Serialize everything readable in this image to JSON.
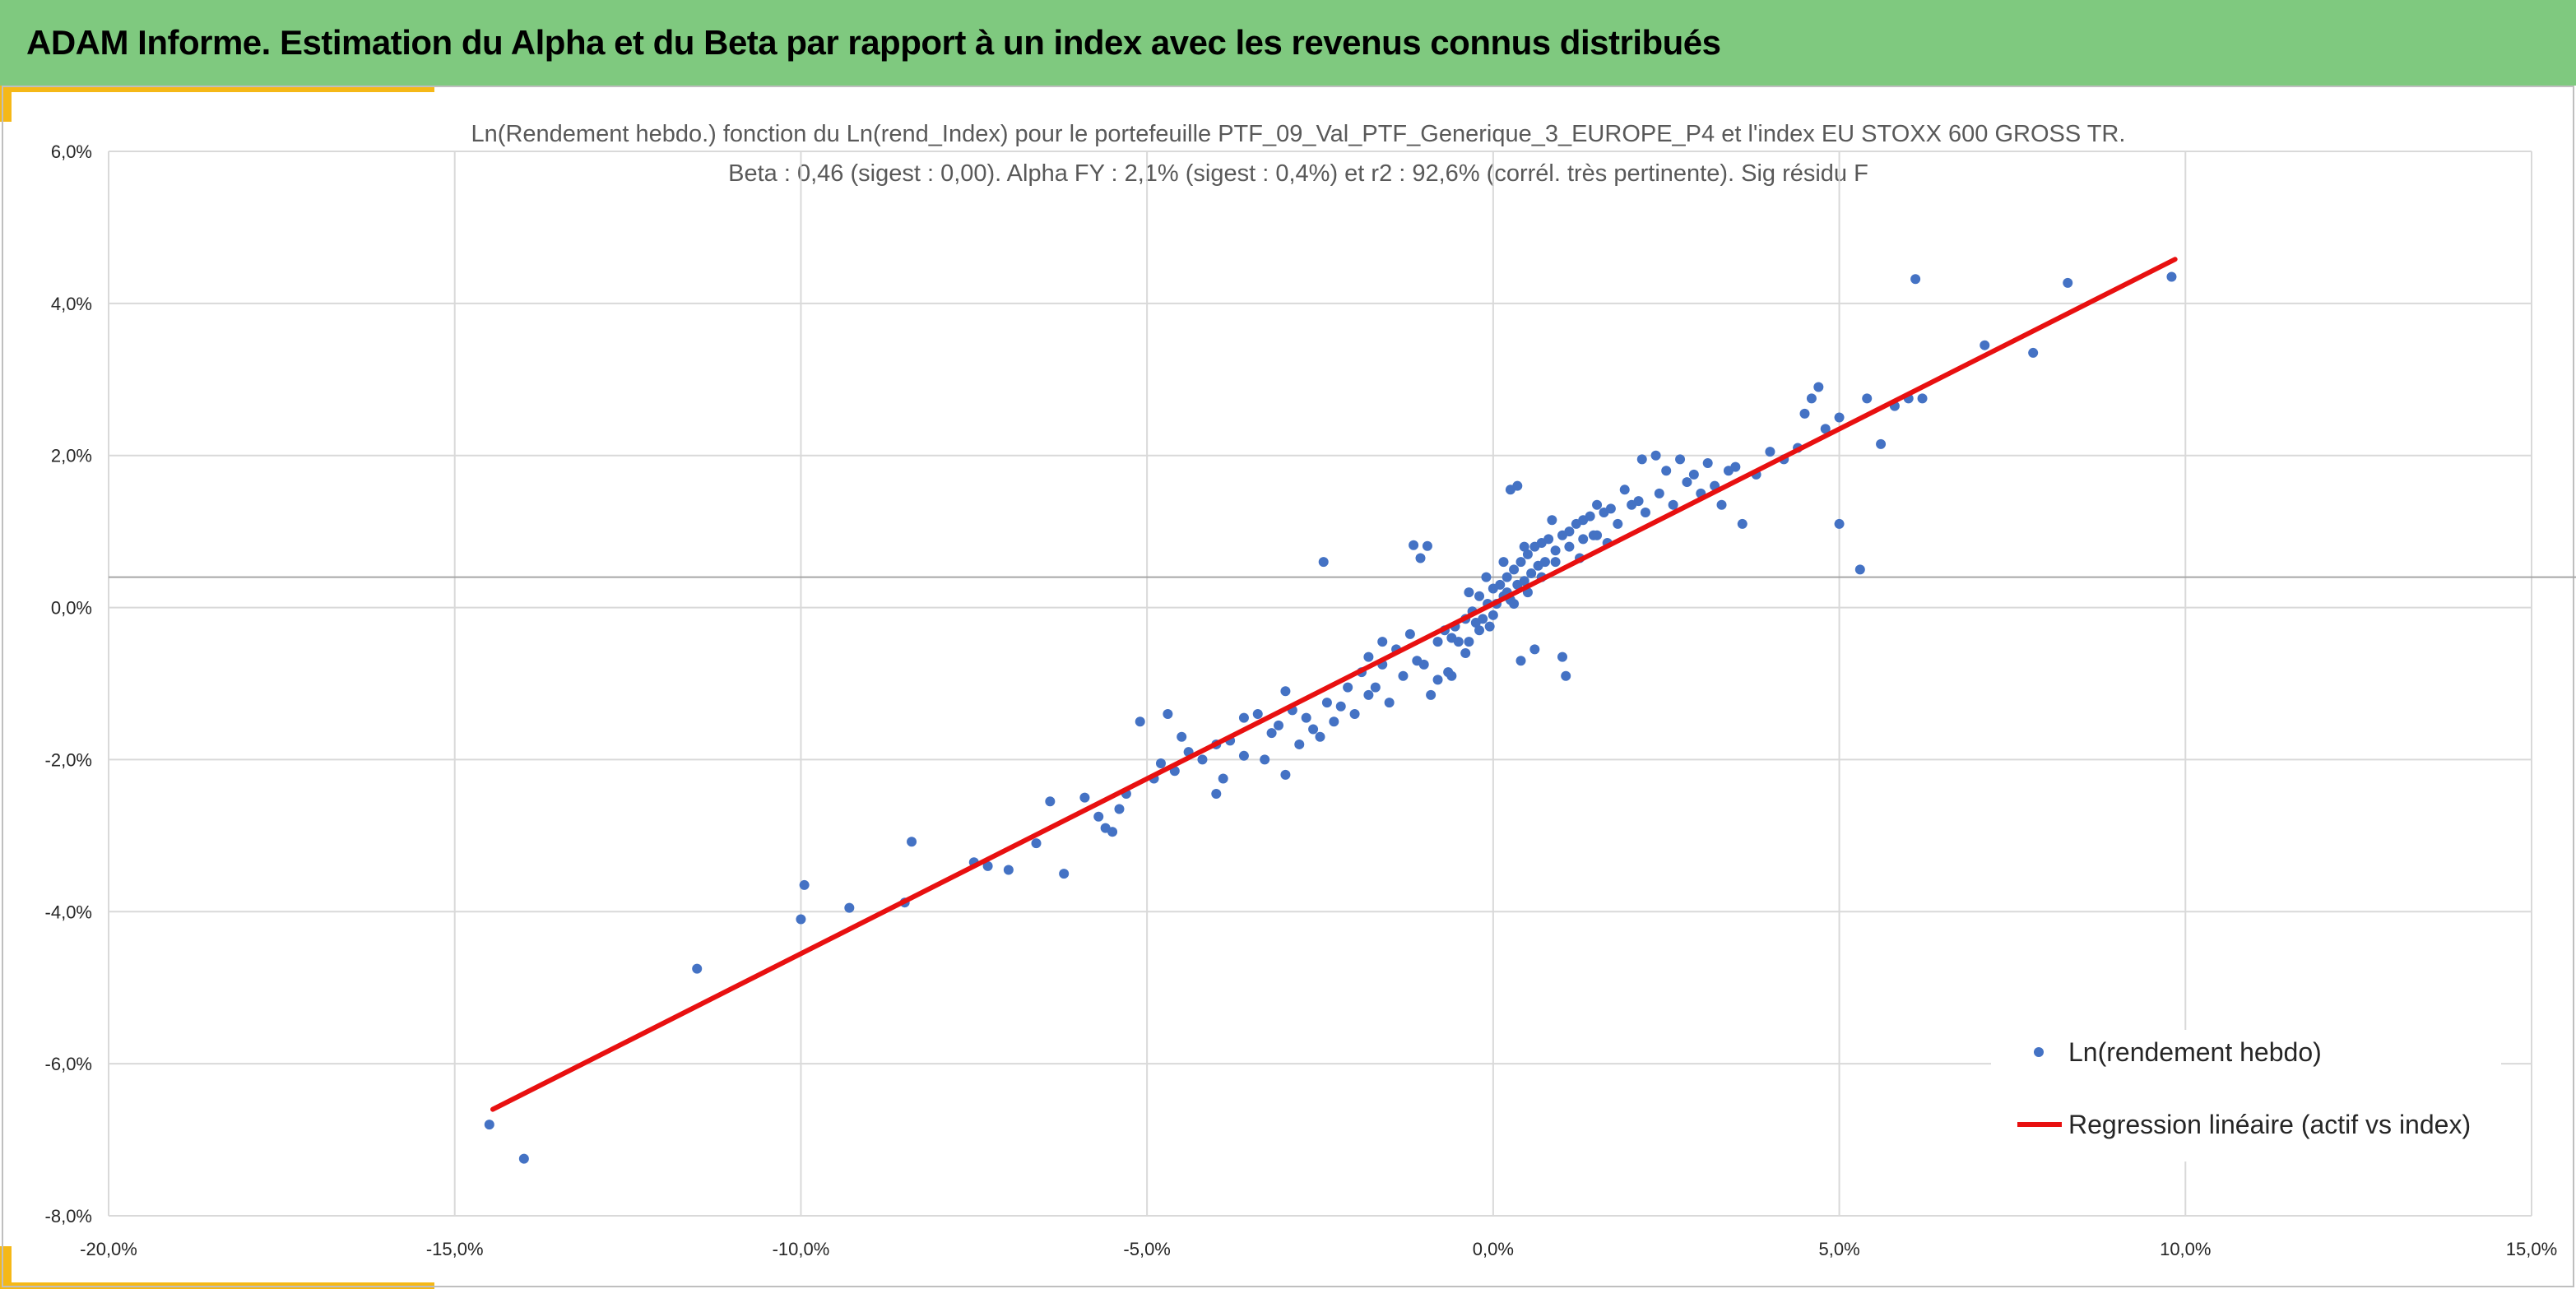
{
  "header": {
    "title": "ADAM Informe. Estimation du Alpha et du Beta par rapport à un index avec les revenus connus distribués"
  },
  "colors": {
    "banner": "#7fc97f",
    "accent": "#f5b817",
    "points": "#4472c4",
    "regression": "#e81010",
    "grid": "#d9d9d9",
    "zero_line": "#a6a6a6"
  },
  "chart_data": {
    "type": "scatter",
    "title": "Ln(Rendement hebdo.) fonction du Ln(rend_Index) pour le portefeuille PTF_09_Val_PTF_Generique_3_EUROPE_P4 et l'index EU STOXX 600 GROSS TR.",
    "subtitle": "Beta : 0,46 (sigest : 0,00). Alpha FY : 2,1% (sigest : 0,4%) et r2 : 92,6% (corrél. très pertinente). Sig résidu F",
    "xlabel": "",
    "ylabel": "",
    "xlim": [
      -0.2,
      0.15
    ],
    "ylim": [
      -0.08,
      0.06
    ],
    "x_ticks": [
      -0.2,
      -0.15,
      -0.1,
      -0.05,
      0.0,
      0.05,
      0.1,
      0.15
    ],
    "x_tick_labels": [
      "-20,0%",
      "-15,0%",
      "-10,0%",
      "-5,0%",
      "0,0%",
      "5,0%",
      "10,0%",
      "15,0%"
    ],
    "y_ticks": [
      -0.08,
      -0.06,
      -0.04,
      -0.02,
      0.0,
      0.02,
      0.04,
      0.06
    ],
    "y_tick_labels": [
      "-8,0%",
      "-6,0%",
      "-4,0%",
      "-2,0%",
      "0,0%",
      "2,0%",
      "4,0%",
      "6,0%"
    ],
    "grid": true,
    "horizontal_reference_line_y": 0.004,
    "legend_position": "bottom-right",
    "series": [
      {
        "name": "Ln(rendement hebdo)",
        "kind": "scatter",
        "color": "#4472c4",
        "points": [
          [
            -0.145,
            -0.068
          ],
          [
            -0.14,
            -0.0725
          ],
          [
            -0.115,
            -0.0475
          ],
          [
            -0.1,
            -0.041
          ],
          [
            -0.0995,
            -0.0365
          ],
          [
            -0.093,
            -0.0395
          ],
          [
            -0.085,
            -0.0388
          ],
          [
            -0.084,
            -0.0308
          ],
          [
            -0.075,
            -0.0335
          ],
          [
            -0.073,
            -0.034
          ],
          [
            -0.07,
            -0.0345
          ],
          [
            -0.066,
            -0.031
          ],
          [
            -0.064,
            -0.0255
          ],
          [
            -0.062,
            -0.035
          ],
          [
            -0.059,
            -0.025
          ],
          [
            -0.057,
            -0.0275
          ],
          [
            -0.056,
            -0.029
          ],
          [
            -0.055,
            -0.0295
          ],
          [
            -0.054,
            -0.0265
          ],
          [
            -0.051,
            -0.015
          ],
          [
            -0.049,
            -0.0225
          ],
          [
            -0.047,
            -0.014
          ],
          [
            -0.046,
            -0.0215
          ],
          [
            -0.044,
            -0.019
          ],
          [
            -0.042,
            -0.02
          ],
          [
            -0.04,
            -0.0245
          ],
          [
            -0.038,
            -0.0175
          ],
          [
            -0.036,
            -0.0195
          ],
          [
            -0.034,
            -0.014
          ],
          [
            -0.033,
            -0.02
          ],
          [
            -0.031,
            -0.0155
          ],
          [
            -0.03,
            -0.022
          ],
          [
            -0.029,
            -0.0135
          ],
          [
            -0.027,
            -0.0145
          ],
          [
            -0.026,
            -0.016
          ],
          [
            -0.024,
            -0.0125
          ],
          [
            -0.0245,
            0.006
          ],
          [
            -0.022,
            -0.013
          ],
          [
            -0.021,
            -0.0105
          ],
          [
            -0.02,
            -0.014
          ],
          [
            -0.019,
            -0.0085
          ],
          [
            -0.018,
            -0.0115
          ],
          [
            -0.016,
            -0.0075
          ],
          [
            -0.015,
            -0.0125
          ],
          [
            -0.014,
            -0.0055
          ],
          [
            -0.013,
            -0.009
          ],
          [
            -0.012,
            -0.0035
          ],
          [
            -0.011,
            -0.007
          ],
          [
            -0.0115,
            0.0082
          ],
          [
            -0.0095,
            0.0081
          ],
          [
            -0.009,
            -0.0115
          ],
          [
            -0.008,
            -0.0045
          ],
          [
            -0.007,
            -0.003
          ],
          [
            -0.0065,
            -0.0085
          ],
          [
            -0.0055,
            -0.0025
          ],
          [
            -0.005,
            -0.0045
          ],
          [
            -0.004,
            -0.0015
          ],
          [
            -0.0035,
            -0.0045
          ],
          [
            -0.003,
            -0.0005
          ],
          [
            -0.0025,
            -0.002
          ],
          [
            -0.002,
            0.0015
          ],
          [
            -0.0015,
            -0.0015
          ],
          [
            -0.0008,
            0.0005
          ],
          [
            -0.0005,
            -0.0025
          ],
          [
            0.0,
            0.0025
          ],
          [
            0.0005,
            0.0005
          ],
          [
            0.001,
            0.003
          ],
          [
            0.0015,
            0.0015
          ],
          [
            0.002,
            0.004
          ],
          [
            0.0025,
            0.001
          ],
          [
            0.003,
            0.005
          ],
          [
            0.0035,
            0.003
          ],
          [
            0.004,
            0.006
          ],
          [
            0.0045,
            0.0035
          ],
          [
            0.005,
            0.007
          ],
          [
            0.0055,
            0.0045
          ],
          [
            0.006,
            0.008
          ],
          [
            0.0065,
            0.0055
          ],
          [
            0.007,
            0.0085
          ],
          [
            0.0075,
            0.006
          ],
          [
            0.008,
            0.009
          ],
          [
            0.009,
            0.0075
          ],
          [
            0.01,
            0.0095
          ],
          [
            0.011,
            0.008
          ],
          [
            0.012,
            0.011
          ],
          [
            0.013,
            0.009
          ],
          [
            0.014,
            0.012
          ],
          [
            0.015,
            0.0095
          ],
          [
            0.016,
            0.0125
          ],
          [
            0.018,
            0.011
          ],
          [
            0.02,
            0.0135
          ],
          [
            0.022,
            0.0125
          ],
          [
            0.024,
            0.015
          ],
          [
            0.026,
            0.0135
          ],
          [
            0.028,
            0.0165
          ],
          [
            0.03,
            0.015
          ],
          [
            0.0025,
            0.0155
          ],
          [
            0.0035,
            0.016
          ],
          [
            0.0105,
            -0.009
          ],
          [
            0.01,
            -0.0065
          ],
          [
            0.004,
            -0.007
          ],
          [
            0.006,
            -0.0055
          ],
          [
            0.0145,
            0.0095
          ],
          [
            0.0215,
            0.0195
          ],
          [
            0.0235,
            0.02
          ],
          [
            0.032,
            0.016
          ],
          [
            0.034,
            0.018
          ],
          [
            0.035,
            0.0185
          ],
          [
            0.036,
            0.011
          ],
          [
            0.038,
            0.0175
          ],
          [
            0.04,
            0.0205
          ],
          [
            0.042,
            0.0195
          ],
          [
            0.044,
            0.021
          ],
          [
            0.045,
            0.0255
          ],
          [
            0.046,
            0.0275
          ],
          [
            0.047,
            0.029
          ],
          [
            0.048,
            0.0235
          ],
          [
            0.05,
            0.011
          ],
          [
            0.05,
            0.025
          ],
          [
            0.053,
            0.005
          ],
          [
            0.054,
            0.0275
          ],
          [
            0.056,
            0.0215
          ],
          [
            0.058,
            0.0265
          ],
          [
            0.06,
            0.0275
          ],
          [
            0.062,
            0.0275
          ],
          [
            0.061,
            0.0432
          ],
          [
            0.071,
            0.0345
          ],
          [
            0.078,
            0.0335
          ],
          [
            0.083,
            0.0427
          ],
          [
            0.098,
            0.0435
          ],
          [
            -0.03,
            -0.011
          ],
          [
            -0.028,
            -0.018
          ],
          [
            -0.025,
            -0.017
          ],
          [
            -0.023,
            -0.015
          ],
          [
            -0.017,
            -0.0105
          ],
          [
            -0.01,
            -0.0075
          ],
          [
            -0.008,
            -0.0095
          ],
          [
            -0.006,
            -0.004
          ],
          [
            -0.004,
            -0.006
          ],
          [
            -0.002,
            -0.003
          ],
          [
            0.0,
            -0.001
          ],
          [
            0.002,
            0.002
          ],
          [
            0.003,
            0.0005
          ],
          [
            0.005,
            0.002
          ],
          [
            0.007,
            0.004
          ],
          [
            0.009,
            0.006
          ],
          [
            0.011,
            0.01
          ],
          [
            0.013,
            0.0115
          ],
          [
            0.015,
            0.0135
          ],
          [
            0.017,
            0.013
          ],
          [
            0.019,
            0.0155
          ],
          [
            0.021,
            0.014
          ],
          [
            0.025,
            0.018
          ],
          [
            0.027,
            0.0195
          ],
          [
            0.029,
            0.0175
          ],
          [
            0.031,
            0.019
          ],
          [
            0.033,
            0.0135
          ],
          [
            -0.0105,
            0.0065
          ],
          [
            -0.016,
            -0.0045
          ],
          [
            -0.018,
            -0.0065
          ],
          [
            -0.006,
            -0.009
          ],
          [
            0.0015,
            0.006
          ],
          [
            -0.001,
            0.004
          ],
          [
            -0.0035,
            0.002
          ],
          [
            0.0045,
            0.008
          ],
          [
            0.0085,
            0.0115
          ],
          [
            0.0125,
            0.0065
          ],
          [
            0.0165,
            0.0085
          ],
          [
            -0.036,
            -0.0145
          ],
          [
            -0.032,
            -0.0165
          ],
          [
            -0.04,
            -0.018
          ],
          [
            -0.045,
            -0.017
          ],
          [
            -0.048,
            -0.0205
          ],
          [
            -0.053,
            -0.0245
          ],
          [
            -0.039,
            -0.0225
          ]
        ]
      },
      {
        "name": "Regression linéaire (actif vs index)",
        "kind": "line",
        "color": "#e81010",
        "points": [
          [
            -0.1445,
            -0.066
          ],
          [
            0.0985,
            0.0458
          ]
        ]
      }
    ]
  }
}
